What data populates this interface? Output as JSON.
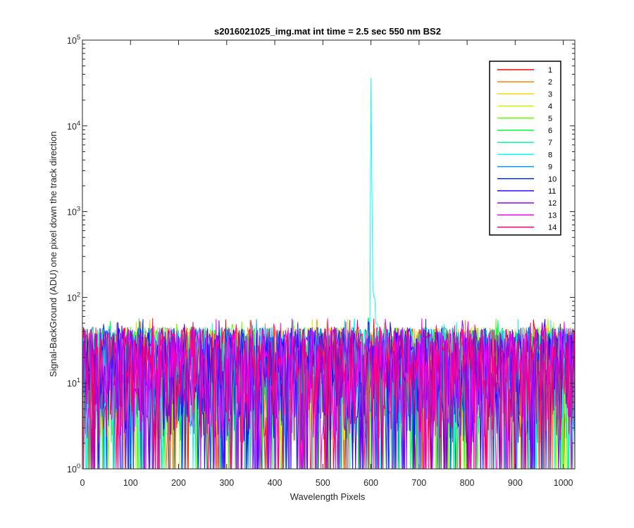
{
  "chart_data": {
    "type": "line",
    "title": "s2016021025_img.mat int time = 2.5 sec  550 nm BS2",
    "xlabel": "Wavelength Pixels",
    "ylabel": "Signal-BackGround (ADU) one pixel down the track direction",
    "xlim": [
      0,
      1024
    ],
    "ylim": [
      1,
      100000
    ],
    "yscale": "log",
    "grid": false,
    "legend_position": "top-right",
    "x_ticks": [
      "0",
      "100",
      "200",
      "300",
      "400",
      "500",
      "600",
      "700",
      "800",
      "900",
      "1000"
    ],
    "y_ticks": [
      {
        "base": "10",
        "exp": "0"
      },
      {
        "base": "10",
        "exp": "1"
      },
      {
        "base": "10",
        "exp": "2"
      },
      {
        "base": "10",
        "exp": "3"
      },
      {
        "base": "10",
        "exp": "4"
      },
      {
        "base": "10",
        "exp": "5"
      }
    ],
    "noise_band": {
      "typical_min": 1,
      "typical_max": 45,
      "occasional_max": 58
    },
    "peak": {
      "series": "8",
      "x": 600,
      "y": 36000,
      "shoulder": [
        {
          "x": 604,
          "y": 130
        },
        {
          "x": 608,
          "y": 100
        }
      ]
    },
    "series": [
      {
        "name": "1",
        "color": "#ff0000"
      },
      {
        "name": "2",
        "color": "#ff7f00"
      },
      {
        "name": "3",
        "color": "#ffd100"
      },
      {
        "name": "4",
        "color": "#bfff00"
      },
      {
        "name": "5",
        "color": "#66ff00"
      },
      {
        "name": "6",
        "color": "#00ff33"
      },
      {
        "name": "7",
        "color": "#00ff99"
      },
      {
        "name": "8",
        "color": "#00ffff"
      },
      {
        "name": "9",
        "color": "#0099ff"
      },
      {
        "name": "10",
        "color": "#0033ff"
      },
      {
        "name": "11",
        "color": "#3300ff"
      },
      {
        "name": "12",
        "color": "#9900ff"
      },
      {
        "name": "13",
        "color": "#ff00ff"
      },
      {
        "name": "14",
        "color": "#ff0066"
      }
    ]
  }
}
